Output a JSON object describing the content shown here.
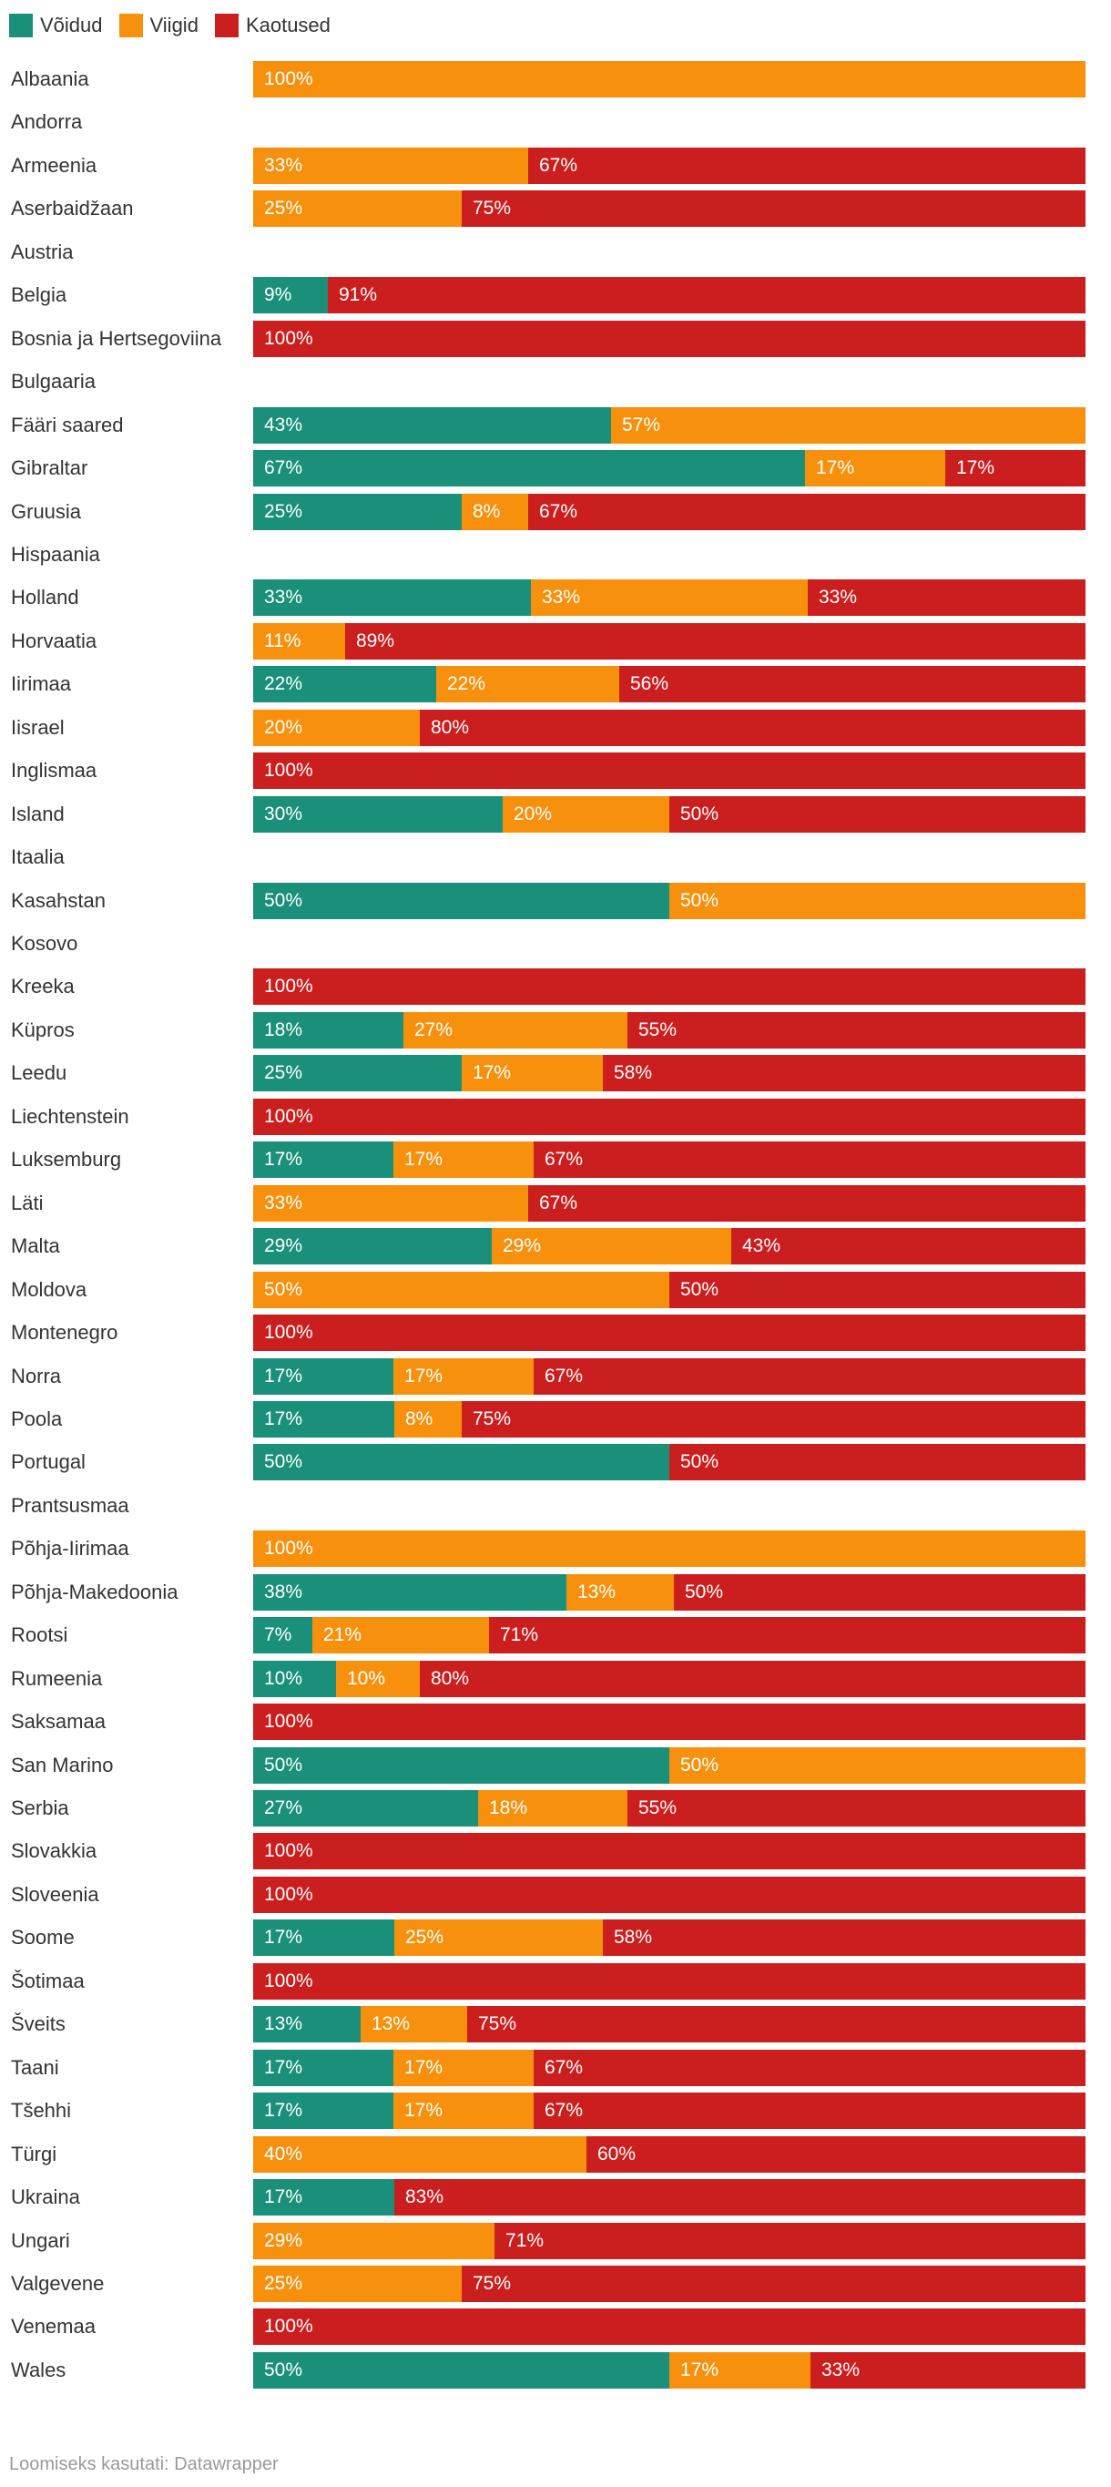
{
  "chart_data": {
    "type": "bar",
    "orientation": "horizontal-stacked-100",
    "series": [
      {
        "name": "Võidud",
        "color": "#1a8f7a"
      },
      {
        "name": "Viigid",
        "color": "#f7910d"
      },
      {
        "name": "Kaotused",
        "color": "#cb1e1e"
      }
    ],
    "rows": [
      {
        "label": "Albaania",
        "values": [
          0,
          100,
          0
        ]
      },
      {
        "label": "Andorra",
        "values": [
          0,
          0,
          0
        ]
      },
      {
        "label": "Armeenia",
        "values": [
          0,
          33,
          67
        ]
      },
      {
        "label": "Aserbaidžaan",
        "values": [
          0,
          25,
          75
        ]
      },
      {
        "label": "Austria",
        "values": [
          0,
          0,
          0
        ]
      },
      {
        "label": "Belgia",
        "values": [
          9,
          0,
          91
        ]
      },
      {
        "label": "Bosnia ja Hertsegoviina",
        "values": [
          0,
          0,
          100
        ]
      },
      {
        "label": "Bulgaaria",
        "values": [
          0,
          0,
          0
        ]
      },
      {
        "label": "Fääri saared",
        "values": [
          43,
          57,
          0
        ]
      },
      {
        "label": "Gibraltar",
        "values": [
          67,
          17,
          17
        ]
      },
      {
        "label": "Gruusia",
        "values": [
          25,
          8,
          67
        ]
      },
      {
        "label": "Hispaania",
        "values": [
          0,
          0,
          0
        ]
      },
      {
        "label": "Holland",
        "values": [
          33,
          33,
          33
        ]
      },
      {
        "label": "Horvaatia",
        "values": [
          0,
          11,
          89
        ]
      },
      {
        "label": "Iirimaa",
        "values": [
          22,
          22,
          56
        ]
      },
      {
        "label": "Iisrael",
        "values": [
          0,
          20,
          80
        ]
      },
      {
        "label": "Inglismaa",
        "values": [
          0,
          0,
          100
        ]
      },
      {
        "label": "Island",
        "values": [
          30,
          20,
          50
        ]
      },
      {
        "label": "Itaalia",
        "values": [
          0,
          0,
          0
        ]
      },
      {
        "label": "Kasahstan",
        "values": [
          50,
          50,
          0
        ]
      },
      {
        "label": "Kosovo",
        "values": [
          0,
          0,
          0
        ]
      },
      {
        "label": "Kreeka",
        "values": [
          0,
          0,
          100
        ]
      },
      {
        "label": "Küpros",
        "values": [
          18,
          27,
          55
        ]
      },
      {
        "label": "Leedu",
        "values": [
          25,
          17,
          58
        ]
      },
      {
        "label": "Liechtenstein",
        "values": [
          0,
          0,
          100
        ]
      },
      {
        "label": "Luksemburg",
        "values": [
          17,
          17,
          67
        ]
      },
      {
        "label": "Läti",
        "values": [
          0,
          33,
          67
        ]
      },
      {
        "label": "Malta",
        "values": [
          29,
          29,
          43
        ]
      },
      {
        "label": "Moldova",
        "values": [
          0,
          50,
          50
        ]
      },
      {
        "label": "Montenegro",
        "values": [
          0,
          0,
          100
        ]
      },
      {
        "label": "Norra",
        "values": [
          17,
          17,
          67
        ]
      },
      {
        "label": "Poola",
        "values": [
          17,
          8,
          75
        ]
      },
      {
        "label": "Portugal",
        "values": [
          50,
          0,
          50
        ]
      },
      {
        "label": "Prantsusmaa",
        "values": [
          0,
          0,
          0
        ]
      },
      {
        "label": "Põhja-Iirimaa",
        "values": [
          0,
          100,
          0
        ]
      },
      {
        "label": "Põhja-Makedoonia",
        "values": [
          38,
          13,
          50
        ]
      },
      {
        "label": "Rootsi",
        "values": [
          7,
          21,
          71
        ]
      },
      {
        "label": "Rumeenia",
        "values": [
          10,
          10,
          80
        ]
      },
      {
        "label": "Saksamaa",
        "values": [
          0,
          0,
          100
        ]
      },
      {
        "label": "San Marino",
        "values": [
          50,
          50,
          0
        ]
      },
      {
        "label": "Serbia",
        "values": [
          27,
          18,
          55
        ]
      },
      {
        "label": "Slovakkia",
        "values": [
          0,
          0,
          100
        ]
      },
      {
        "label": "Sloveenia",
        "values": [
          0,
          0,
          100
        ]
      },
      {
        "label": "Soome",
        "values": [
          17,
          25,
          58
        ]
      },
      {
        "label": "Šotimaa",
        "values": [
          0,
          0,
          100
        ]
      },
      {
        "label": "Šveits",
        "values": [
          13,
          13,
          75
        ]
      },
      {
        "label": "Taani",
        "values": [
          17,
          17,
          67
        ]
      },
      {
        "label": "Tšehhi",
        "values": [
          17,
          17,
          67
        ]
      },
      {
        "label": "Türgi",
        "values": [
          0,
          40,
          60
        ]
      },
      {
        "label": "Ukraina",
        "values": [
          17,
          0,
          83
        ]
      },
      {
        "label": "Ungari",
        "values": [
          0,
          29,
          71
        ]
      },
      {
        "label": "Valgevene",
        "values": [
          0,
          25,
          75
        ]
      },
      {
        "label": "Venemaa",
        "values": [
          0,
          0,
          100
        ]
      },
      {
        "label": "Wales",
        "values": [
          50,
          17,
          33
        ]
      }
    ],
    "value_suffix": "%",
    "xlim": [
      0,
      100
    ],
    "legend_position": "top-left"
  },
  "footer": {
    "credit": "Loomiseks kasutati: Datawrapper"
  }
}
